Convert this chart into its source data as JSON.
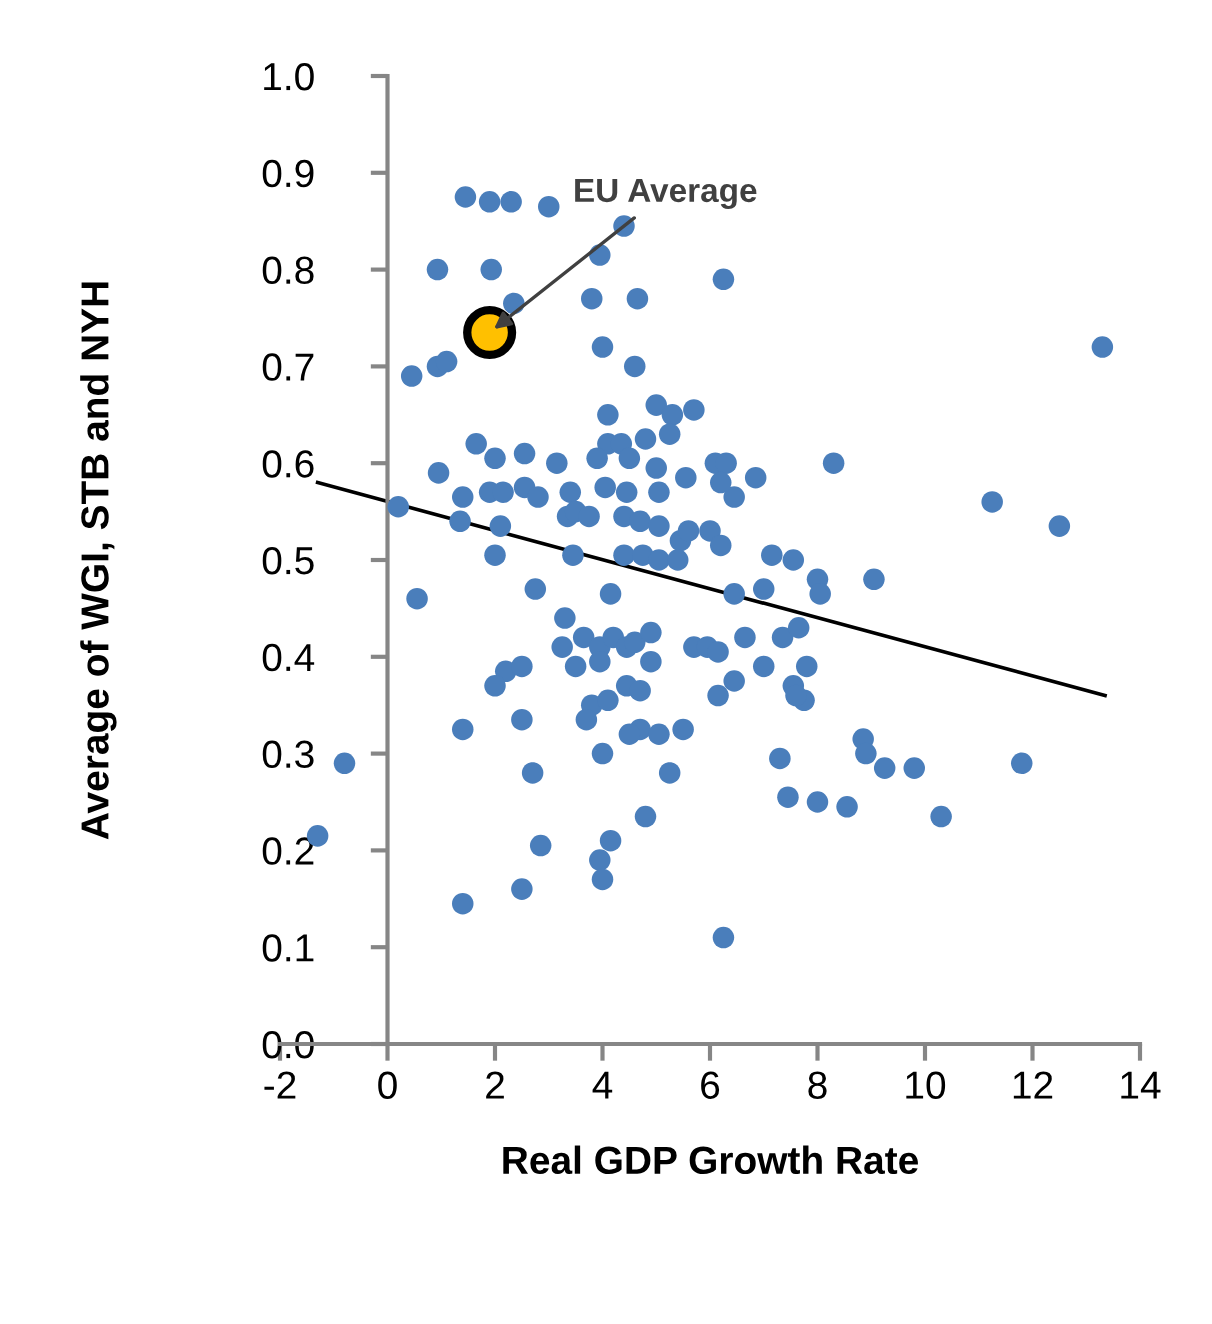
{
  "chart_data": {
    "type": "scatter",
    "xlabel": "Real GDP Growth Rate",
    "ylabel": "Average of WGI, STB and NYH",
    "xlim": [
      -2,
      14
    ],
    "xticks": [
      -2,
      0,
      2,
      4,
      6,
      8,
      10,
      12,
      14
    ],
    "ylim": [
      0,
      1
    ],
    "yticks": [
      {
        "value": 0,
        "label": "0.0"
      },
      0.1,
      0.2,
      0.3,
      0.4,
      0.5,
      0.6,
      0.7,
      0.8,
      0.9,
      {
        "value": 1,
        "label": "1.0"
      }
    ],
    "grid": false,
    "legend": false,
    "marker": "circle",
    "annotations": [
      {
        "text": "EU Average",
        "x": 1.9,
        "y": 0.735
      }
    ],
    "series": [
      {
        "color": "#4a7ebb",
        "x": [
          1.45,
          1.9,
          2.3,
          3.0,
          4.4,
          0.93,
          1.93,
          3.95,
          6.25,
          3.8,
          4.65,
          2.35,
          4.0,
          4.6,
          13.3,
          0.45,
          0.93,
          1.1,
          5.0,
          5.3,
          5.7,
          4.1,
          5.25,
          4.8,
          4.1,
          4.35,
          1.65,
          2.0,
          2.55,
          0.95,
          3.15,
          3.9,
          4.5,
          5.0,
          6.1,
          6.3,
          6.85,
          8.3,
          6.45,
          0.2,
          1.4,
          1.9,
          2.15,
          2.55,
          2.8,
          3.4,
          4.05,
          4.45,
          5.05,
          5.55,
          6.2,
          1.35,
          2.1,
          3.35,
          3.5,
          3.75,
          4.4,
          4.7,
          5.05,
          5.45,
          5.6,
          6.0,
          6.2,
          7.15,
          7.55,
          8.0,
          8.05,
          9.05,
          11.25,
          12.5,
          2.0,
          3.45,
          4.4,
          4.75,
          5.05,
          5.4,
          6.45,
          7.0,
          0.55,
          2.75,
          4.15,
          3.3,
          3.25,
          3.65,
          3.95,
          4.2,
          4.45,
          4.6,
          4.9,
          3.5,
          3.95,
          4.9,
          5.7,
          5.95,
          6.15,
          6.65,
          7.0,
          7.35,
          7.65,
          7.8,
          7.55,
          7.75,
          6.45,
          6.15,
          7.6,
          2.2,
          2.0,
          3.8,
          3.7,
          4.1,
          4.45,
          4.7,
          4.7,
          4.5,
          5.05,
          5.5,
          5.25,
          4.0,
          2.5,
          2.5,
          1.4,
          2.7,
          7.3,
          8.85,
          9.25,
          9.8,
          11.8,
          8.9,
          7.45,
          8.0,
          8.55,
          10.3,
          4.8,
          -0.8,
          -1.3,
          2.85,
          4.15,
          3.95,
          4.0,
          2.5,
          1.4,
          6.25
        ],
        "values": [
          0.875,
          0.87,
          0.87,
          0.865,
          0.845,
          0.8,
          0.8,
          0.815,
          0.79,
          0.77,
          0.77,
          0.765,
          0.72,
          0.7,
          0.72,
          0.69,
          0.7,
          0.705,
          0.66,
          0.65,
          0.655,
          0.65,
          0.63,
          0.625,
          0.62,
          0.62,
          0.62,
          0.605,
          0.61,
          0.59,
          0.6,
          0.605,
          0.605,
          0.595,
          0.6,
          0.6,
          0.585,
          0.6,
          0.565,
          0.555,
          0.565,
          0.57,
          0.57,
          0.575,
          0.565,
          0.57,
          0.575,
          0.57,
          0.57,
          0.585,
          0.58,
          0.54,
          0.535,
          0.545,
          0.55,
          0.545,
          0.545,
          0.54,
          0.535,
          0.52,
          0.53,
          0.53,
          0.515,
          0.505,
          0.5,
          0.48,
          0.465,
          0.48,
          0.56,
          0.535,
          0.505,
          0.505,
          0.505,
          0.505,
          0.5,
          0.5,
          0.465,
          0.47,
          0.46,
          0.47,
          0.465,
          0.44,
          0.41,
          0.42,
          0.41,
          0.42,
          0.41,
          0.415,
          0.425,
          0.39,
          0.395,
          0.395,
          0.41,
          0.41,
          0.405,
          0.42,
          0.39,
          0.42,
          0.43,
          0.39,
          0.37,
          0.355,
          0.375,
          0.36,
          0.36,
          0.385,
          0.37,
          0.35,
          0.335,
          0.355,
          0.37,
          0.365,
          0.325,
          0.32,
          0.32,
          0.325,
          0.28,
          0.3,
          0.39,
          0.335,
          0.325,
          0.28,
          0.295,
          0.315,
          0.285,
          0.285,
          0.29,
          0.3,
          0.255,
          0.25,
          0.245,
          0.235,
          0.235,
          0.29,
          0.215,
          0.205,
          0.21,
          0.19,
          0.17,
          0.16,
          0.145,
          0.11
        ]
      },
      {
        "color": "#ffc000",
        "x": [
          1.9
        ],
        "values": [
          0.735
        ]
      },
      {
        "type": "line",
        "marker": "none",
        "color": "#000000",
        "x": [
          -1.3,
          13.35
        ],
        "values": [
          0.58,
          0.36
        ]
      }
    ]
  }
}
